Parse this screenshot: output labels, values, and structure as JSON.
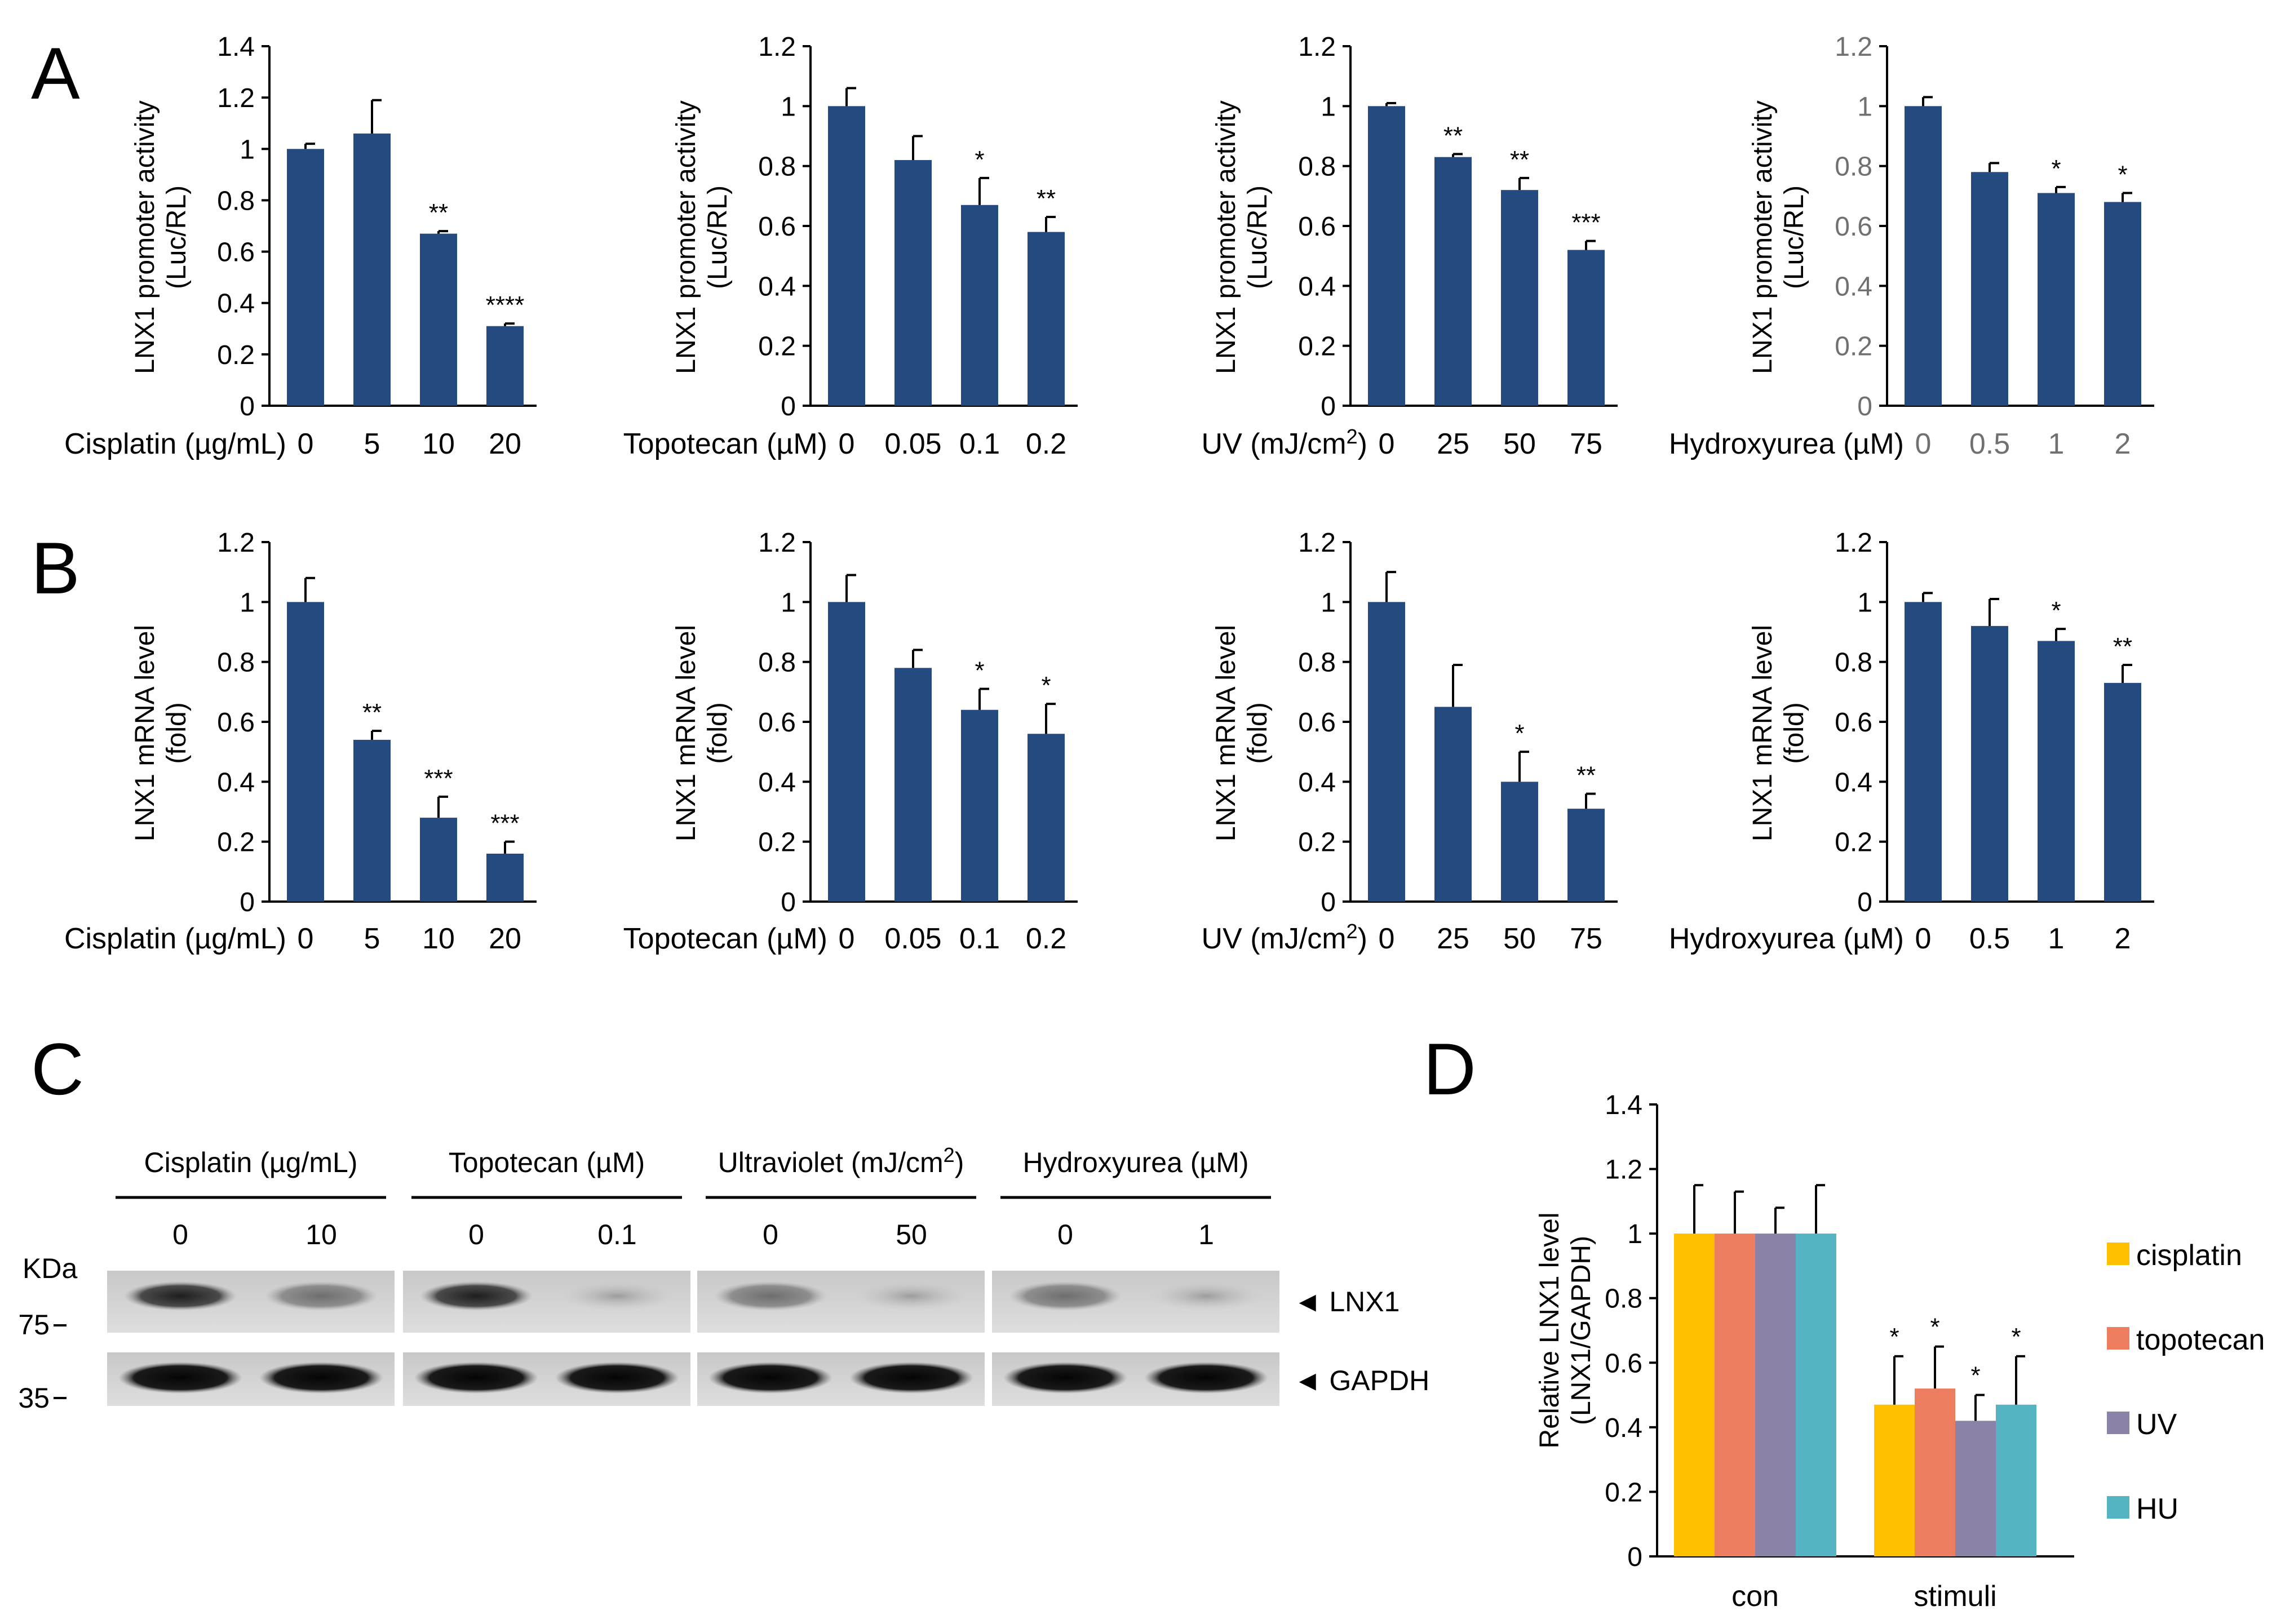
{
  "colors": {
    "bar": "#244a80",
    "axis": "#000000",
    "grey_tick": "#707070",
    "cisplatin": "#ffc000",
    "topotecan": "#ed7d5f",
    "uv": "#8b82a8",
    "hu": "#55b4c4"
  },
  "panel_letters": {
    "A": "A",
    "B": "B",
    "C": "C",
    "D": "D"
  },
  "panelA": {
    "ylabel_line1": "LNX1 promoter activity",
    "ylabel_line2": "(Luc/RL)",
    "charts": [
      {
        "ctrl_label": "Cisplatin (µg/mL)",
        "categories": [
          "0",
          "5",
          "10",
          "20"
        ],
        "values": [
          1.0,
          1.06,
          0.67,
          0.31
        ],
        "errors": [
          0.02,
          0.13,
          0.01,
          0.01
        ],
        "sig": [
          "",
          "",
          "**",
          "****"
        ],
        "ylim": [
          0,
          1.4
        ],
        "yticks": [
          "0",
          "0.2",
          "0.4",
          "0.6",
          "0.8",
          "1",
          "1.2",
          "1.4"
        ]
      },
      {
        "ctrl_label": "Topotecan (µM)",
        "categories": [
          "0",
          "0.05",
          "0.1",
          "0.2"
        ],
        "values": [
          1.0,
          0.82,
          0.67,
          0.58
        ],
        "errors": [
          0.06,
          0.08,
          0.09,
          0.05
        ],
        "sig": [
          "",
          "",
          "*",
          "**"
        ],
        "ylim": [
          0,
          1.2
        ],
        "yticks": [
          "0",
          "0.2",
          "0.4",
          "0.6",
          "0.8",
          "1",
          "1.2"
        ]
      },
      {
        "ctrl_label": "UV (mJ/cm2)",
        "categories": [
          "0",
          "25",
          "50",
          "75"
        ],
        "values": [
          1.0,
          0.83,
          0.72,
          0.52
        ],
        "errors": [
          0.01,
          0.01,
          0.04,
          0.03
        ],
        "sig": [
          "",
          "**",
          "**",
          "***"
        ],
        "ylim": [
          0,
          1.2
        ],
        "yticks": [
          "0",
          "0.2",
          "0.4",
          "0.6",
          "0.8",
          "1",
          "1.2"
        ]
      },
      {
        "ctrl_label": "Hydroxyurea (µM)",
        "categories": [
          "0",
          "0.5",
          "1",
          "2"
        ],
        "values": [
          1.0,
          0.78,
          0.71,
          0.68
        ],
        "errors": [
          0.03,
          0.03,
          0.02,
          0.03
        ],
        "sig": [
          "",
          "",
          "*",
          "*"
        ],
        "ylim": [
          0,
          1.2
        ],
        "yticks": [
          "0",
          "0.2",
          "0.4",
          "0.6",
          "0.8",
          "1",
          "1.2"
        ],
        "grey": true
      }
    ]
  },
  "panelB": {
    "ylabel_line1": "LNX1 mRNA level",
    "ylabel_line2": "(fold)",
    "charts": [
      {
        "ctrl_label": "Cisplatin (µg/mL)",
        "categories": [
          "0",
          "5",
          "10",
          "20"
        ],
        "values": [
          1.0,
          0.54,
          0.28,
          0.16
        ],
        "errors": [
          0.08,
          0.03,
          0.07,
          0.04
        ],
        "sig": [
          "",
          "**",
          "***",
          "***"
        ],
        "ylim": [
          0,
          1.2
        ],
        "yticks": [
          "0",
          "0.2",
          "0.4",
          "0.6",
          "0.8",
          "1",
          "1.2"
        ]
      },
      {
        "ctrl_label": "Topotecan (µM)",
        "categories": [
          "0",
          "0.05",
          "0.1",
          "0.2"
        ],
        "values": [
          1.0,
          0.78,
          0.64,
          0.56
        ],
        "errors": [
          0.09,
          0.06,
          0.07,
          0.1
        ],
        "sig": [
          "",
          "",
          "*",
          "*"
        ],
        "ylim": [
          0,
          1.2
        ],
        "yticks": [
          "0",
          "0.2",
          "0.4",
          "0.6",
          "0.8",
          "1",
          "1.2"
        ]
      },
      {
        "ctrl_label": "UV (mJ/cm2)",
        "categories": [
          "0",
          "25",
          "50",
          "75"
        ],
        "values": [
          1.0,
          0.65,
          0.4,
          0.31
        ],
        "errors": [
          0.1,
          0.14,
          0.1,
          0.05
        ],
        "sig": [
          "",
          "",
          "*",
          "**"
        ],
        "ylim": [
          0,
          1.2
        ],
        "yticks": [
          "0",
          "0.2",
          "0.4",
          "0.6",
          "0.8",
          "1",
          "1.2"
        ]
      },
      {
        "ctrl_label": "Hydroxyurea (µM)",
        "categories": [
          "0",
          "0.5",
          "1",
          "2"
        ],
        "values": [
          1.0,
          0.92,
          0.87,
          0.73
        ],
        "errors": [
          0.03,
          0.09,
          0.04,
          0.06
        ],
        "sig": [
          "",
          "",
          "*",
          "**"
        ],
        "ylim": [
          0,
          1.2
        ],
        "yticks": [
          "0",
          "0.2",
          "0.4",
          "0.6",
          "0.8",
          "1",
          "1.2"
        ]
      }
    ]
  },
  "panelC": {
    "groups": [
      {
        "label": "Cisplatin (µg/mL)",
        "doses": [
          "0",
          "10"
        ]
      },
      {
        "label": "Topotecan (µM)",
        "doses": [
          "0",
          "0.1"
        ]
      },
      {
        "label": "Ultraviolet (mJ/cm2)",
        "doses": [
          "0",
          "50"
        ]
      },
      {
        "label": "Hydroxyurea (µM)",
        "doses": [
          "0",
          "1"
        ]
      }
    ],
    "kda_label": "KDa",
    "markers": [
      "75",
      "35"
    ],
    "bands": [
      "◄ LNX1",
      "◄ GAPDH"
    ]
  },
  "chart_data": [
    {
      "type": "bar",
      "panel": "A",
      "title": "",
      "xlabel": "Cisplatin (µg/mL)",
      "ylabel": "LNX1 promoter activity (Luc/RL)",
      "categories": [
        "0",
        "5",
        "10",
        "20"
      ],
      "values": [
        1.0,
        1.06,
        0.67,
        0.31
      ],
      "ylim": [
        0,
        1.4
      ]
    },
    {
      "type": "bar",
      "panel": "A",
      "title": "",
      "xlabel": "Topotecan (µM)",
      "ylabel": "LNX1 promoter activity (Luc/RL)",
      "categories": [
        "0",
        "0.05",
        "0.1",
        "0.2"
      ],
      "values": [
        1.0,
        0.82,
        0.67,
        0.58
      ],
      "ylim": [
        0,
        1.2
      ]
    },
    {
      "type": "bar",
      "panel": "A",
      "title": "",
      "xlabel": "UV (mJ/cm2)",
      "ylabel": "LNX1 promoter activity (Luc/RL)",
      "categories": [
        "0",
        "25",
        "50",
        "75"
      ],
      "values": [
        1.0,
        0.83,
        0.72,
        0.52
      ],
      "ylim": [
        0,
        1.2
      ]
    },
    {
      "type": "bar",
      "panel": "A",
      "title": "",
      "xlabel": "Hydroxyurea (µM)",
      "ylabel": "LNX1 promoter activity (Luc/RL)",
      "categories": [
        "0",
        "0.5",
        "1",
        "2"
      ],
      "values": [
        1.0,
        0.78,
        0.71,
        0.68
      ],
      "ylim": [
        0,
        1.2
      ]
    },
    {
      "type": "bar",
      "panel": "B",
      "title": "",
      "xlabel": "Cisplatin (µg/mL)",
      "ylabel": "LNX1 mRNA level (fold)",
      "categories": [
        "0",
        "5",
        "10",
        "20"
      ],
      "values": [
        1.0,
        0.54,
        0.28,
        0.16
      ],
      "ylim": [
        0,
        1.2
      ]
    },
    {
      "type": "bar",
      "panel": "B",
      "title": "",
      "xlabel": "Topotecan (µM)",
      "ylabel": "LNX1 mRNA level (fold)",
      "categories": [
        "0",
        "0.05",
        "0.1",
        "0.2"
      ],
      "values": [
        1.0,
        0.78,
        0.64,
        0.56
      ],
      "ylim": [
        0,
        1.2
      ]
    },
    {
      "type": "bar",
      "panel": "B",
      "title": "",
      "xlabel": "UV (mJ/cm2)",
      "ylabel": "LNX1 mRNA level (fold)",
      "categories": [
        "0",
        "25",
        "50",
        "75"
      ],
      "values": [
        1.0,
        0.65,
        0.4,
        0.31
      ],
      "ylim": [
        0,
        1.2
      ]
    },
    {
      "type": "bar",
      "panel": "B",
      "title": "",
      "xlabel": "Hydroxyurea (µM)",
      "ylabel": "LNX1 mRNA level (fold)",
      "categories": [
        "0",
        "0.5",
        "1",
        "2"
      ],
      "values": [
        1.0,
        0.92,
        0.87,
        0.73
      ],
      "ylim": [
        0,
        1.2
      ]
    },
    {
      "type": "bar",
      "panel": "D",
      "title": "",
      "xlabel": "",
      "ylabel": "Relative LNX1 level (LNX1/GAPDH)",
      "ylabel_line1": "Relative LNX1 level",
      "ylabel_line2": "(LNX1/GAPDH)",
      "categories": [
        "con",
        "stimuli"
      ],
      "ylim": [
        0,
        1.4
      ],
      "yticks": [
        "0",
        "0.2",
        "0.4",
        "0.6",
        "0.8",
        "1",
        "1.2",
        "1.4"
      ],
      "legend_position": "right",
      "series": [
        {
          "name": "cisplatin",
          "values": [
            1.0,
            0.47
          ],
          "errors": [
            0.15,
            0.15
          ],
          "sig": [
            "",
            "*"
          ]
        },
        {
          "name": "topotecan",
          "values": [
            1.0,
            0.52
          ],
          "errors": [
            0.13,
            0.13
          ],
          "sig": [
            "",
            "*"
          ]
        },
        {
          "name": "UV",
          "values": [
            1.0,
            0.42
          ],
          "errors": [
            0.08,
            0.08
          ],
          "sig": [
            "",
            "*"
          ]
        },
        {
          "name": "HU",
          "values": [
            1.0,
            0.47
          ],
          "errors": [
            0.15,
            0.15
          ],
          "sig": [
            "",
            "*"
          ]
        }
      ]
    }
  ]
}
